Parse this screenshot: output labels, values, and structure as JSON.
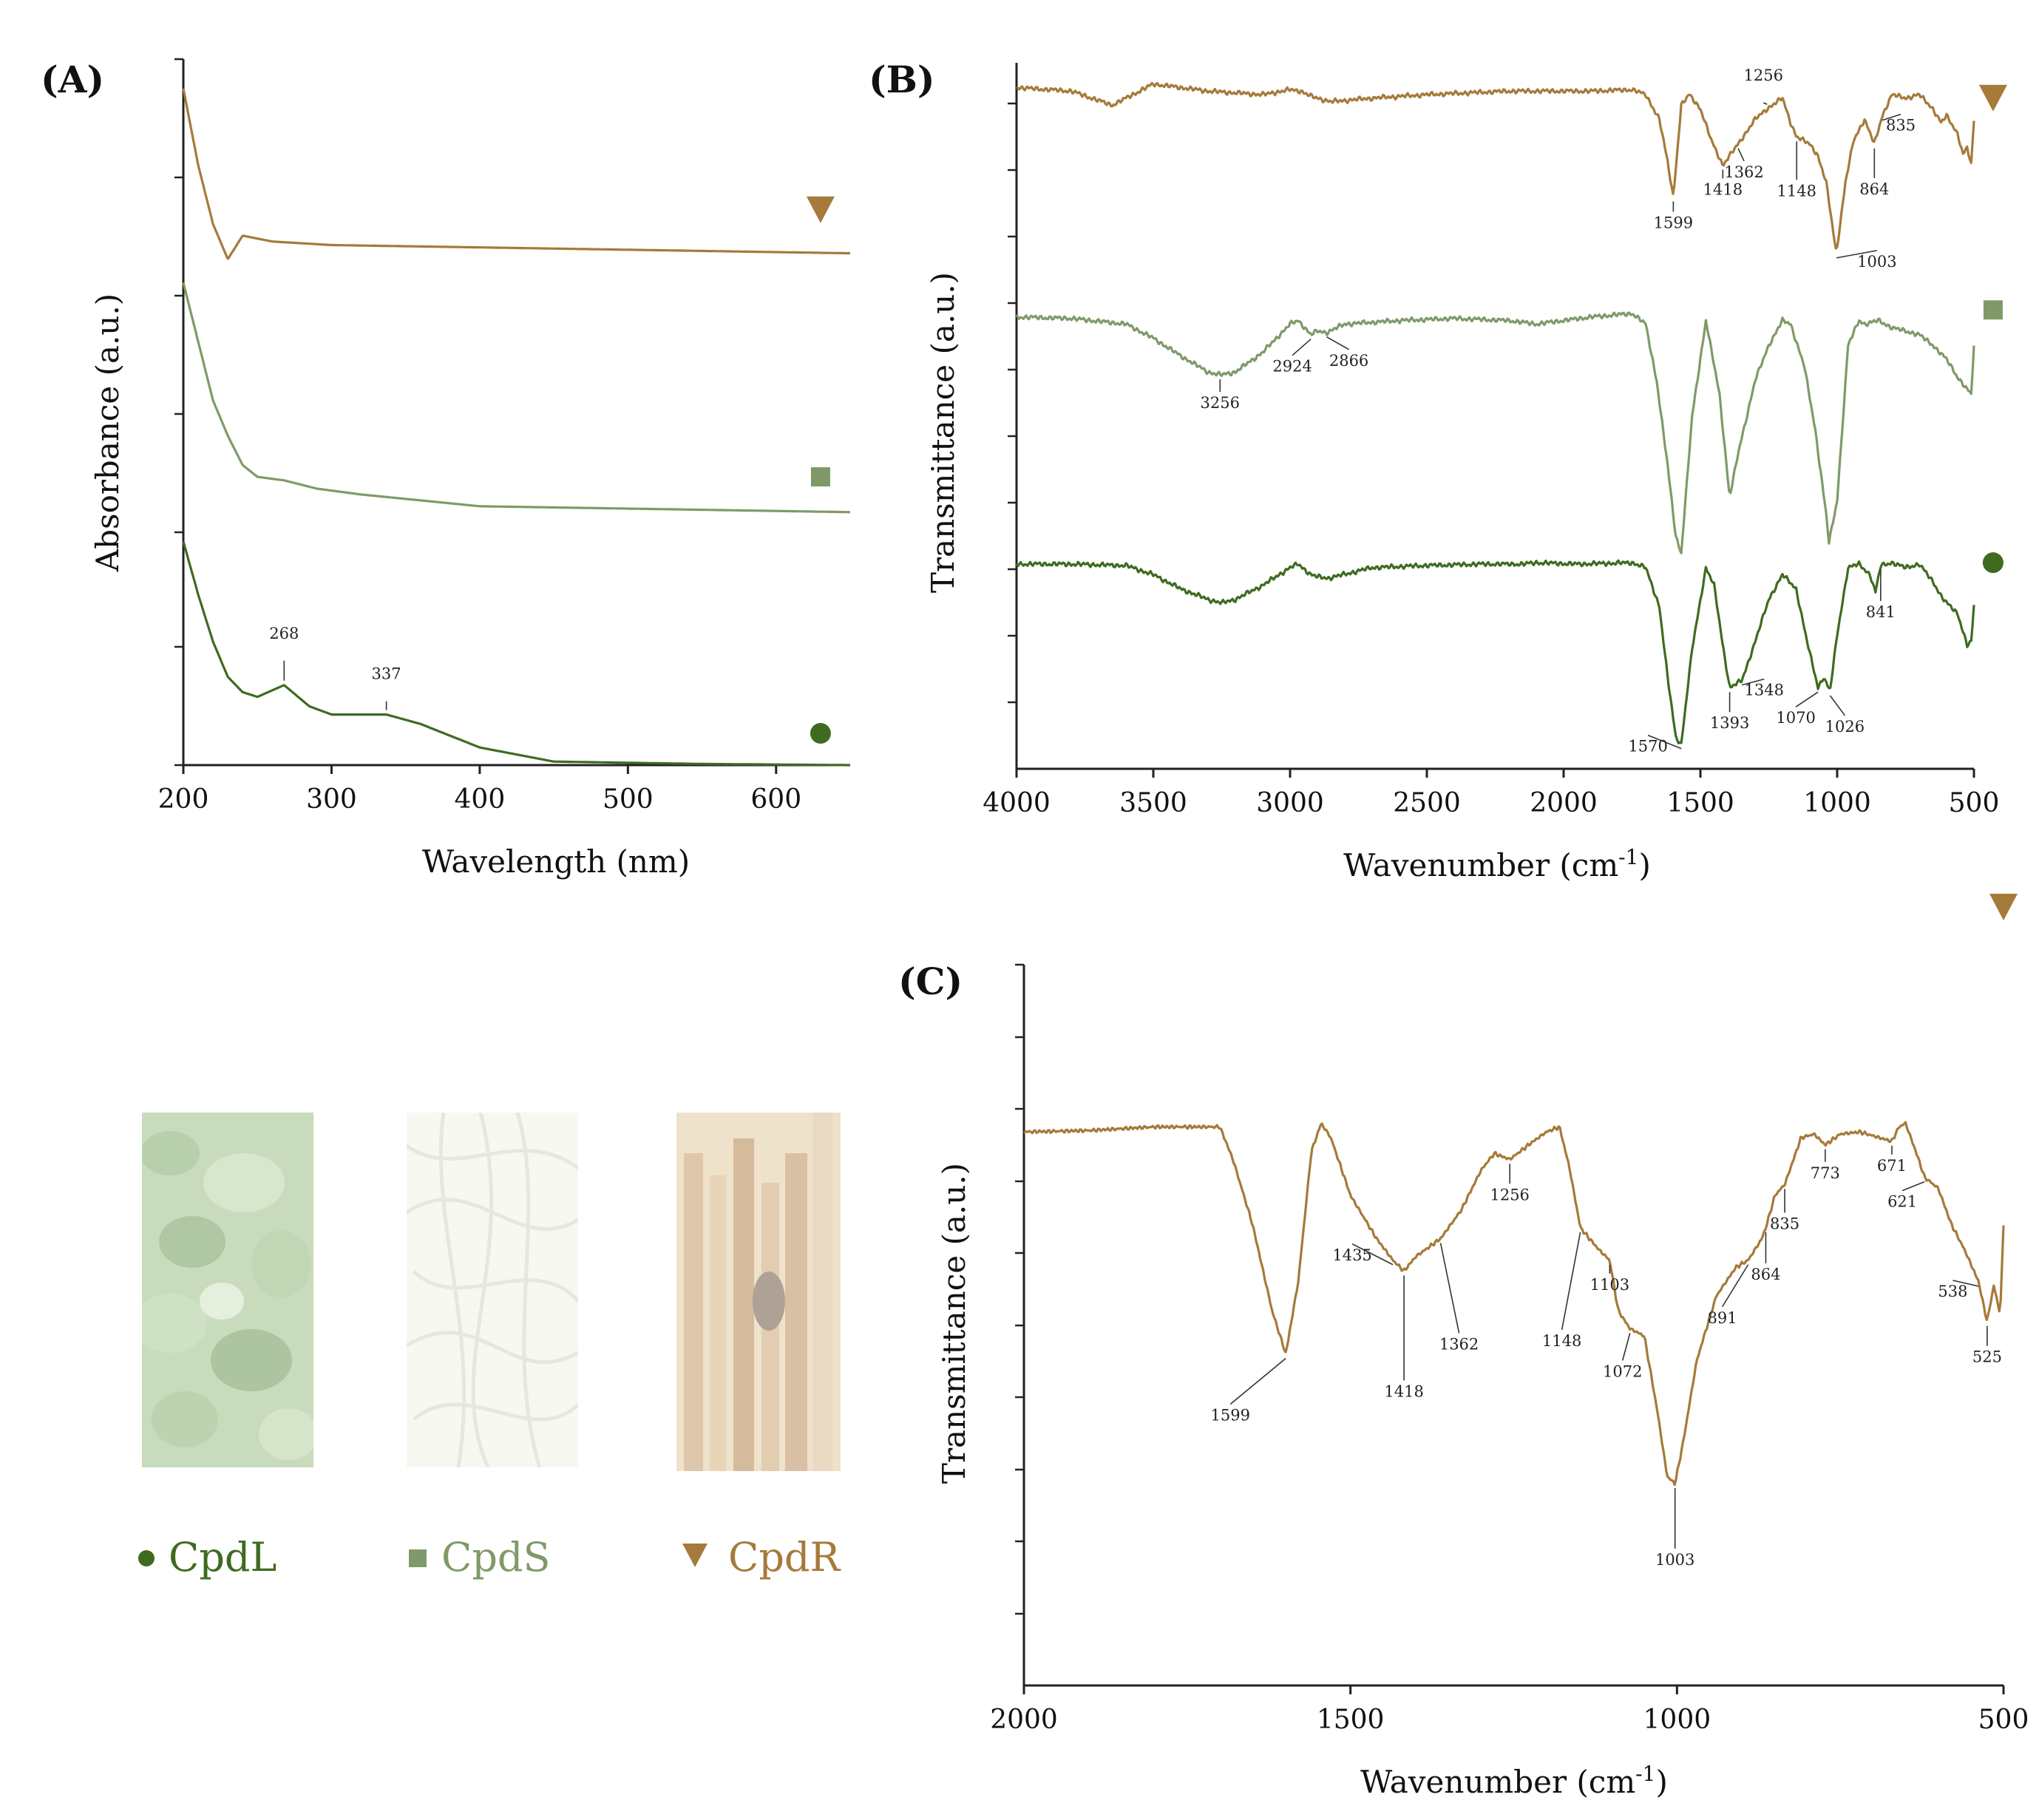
{
  "colors": {
    "CpdL": "#3f6b1f",
    "CpdS": "#7f9a68",
    "CpdR": "#a57a3a"
  },
  "legend": [
    {
      "name": "CpdL",
      "marker": "circle",
      "label": "CpdL"
    },
    {
      "name": "CpdS",
      "marker": "square",
      "label": "CpdS"
    },
    {
      "name": "CpdR",
      "marker": "triangle-down",
      "label": "CpdR"
    }
  ],
  "photos": [
    {
      "name": "leaves-photo",
      "icon": "leaves-photo-icon"
    },
    {
      "name": "stems-photo",
      "icon": "stems-photo-icon"
    },
    {
      "name": "roots-photo",
      "icon": "roots-photo-icon"
    }
  ],
  "chart_data": [
    {
      "panel": "(A)",
      "type": "line",
      "xlabel": "Wavelength (nm)",
      "ylabel": "Absorbance (a.u.)",
      "xlim": [
        200,
        650
      ],
      "ylim": [
        0,
        6
      ],
      "xticks": [
        200,
        300,
        400,
        500,
        600
      ],
      "series": [
        {
          "name": "CpdR",
          "marker": "triangle-down",
          "x": [
            200,
            210,
            220,
            230,
            240,
            260,
            300,
            400,
            500,
            650
          ],
          "values": [
            5.75,
            5.1,
            4.6,
            4.3,
            4.5,
            4.45,
            4.42,
            4.4,
            4.38,
            4.35
          ]
        },
        {
          "name": "CpdS",
          "marker": "square",
          "x": [
            200,
            210,
            220,
            230,
            240,
            250,
            268,
            290,
            320,
            400,
            500,
            650
          ],
          "values": [
            4.1,
            3.6,
            3.1,
            2.8,
            2.55,
            2.45,
            2.42,
            2.35,
            2.3,
            2.2,
            2.18,
            2.15
          ]
        },
        {
          "name": "CpdL",
          "marker": "circle",
          "x": [
            200,
            210,
            220,
            230,
            240,
            250,
            268,
            285,
            300,
            337,
            360,
            400,
            450,
            550,
            650
          ],
          "values": [
            1.9,
            1.45,
            1.05,
            0.75,
            0.62,
            0.58,
            0.68,
            0.5,
            0.43,
            0.43,
            0.35,
            0.15,
            0.03,
            0.01,
            0.0
          ]
        }
      ],
      "annotations": [
        {
          "label": "268",
          "x": 268,
          "series": "CpdL"
        },
        {
          "label": "337",
          "x": 337,
          "series": "CpdL"
        }
      ]
    },
    {
      "panel": "(B)",
      "type": "line",
      "xlabel": "Wavenumber (cm-1)",
      "xlabel_main": "Wavenumber (cm",
      "xlabel_sup": "-1",
      "xlabel_end": ")",
      "ylabel": "Transmittance (a.u.)",
      "xlim": [
        4000,
        500
      ],
      "ylim": [
        0,
        10
      ],
      "xticks": [
        4000,
        3500,
        3000,
        2500,
        2000,
        1500,
        1000,
        500
      ],
      "series": [
        {
          "name": "CpdR",
          "marker": "triangle-down",
          "x": [
            4000,
            3800,
            3650,
            3500,
            3300,
            3100,
            3000,
            2960,
            2920,
            2850,
            2700,
            2500,
            2200,
            1900,
            1750,
            1700,
            1650,
            1620,
            1599,
            1570,
            1540,
            1500,
            1460,
            1418,
            1362,
            1300,
            1256,
            1200,
            1170,
            1148,
            1100,
            1072,
            1040,
            1003,
            970,
            940,
            900,
            864,
            835,
            800,
            750,
            700,
            650,
            620,
            600,
            560,
            540,
            525,
            510,
            500
          ],
          "values": [
            9.65,
            9.6,
            9.4,
            9.7,
            9.6,
            9.55,
            9.62,
            9.6,
            9.52,
            9.45,
            9.5,
            9.55,
            9.6,
            9.6,
            9.62,
            9.55,
            9.2,
            8.6,
            8.1,
            9.4,
            9.55,
            9.35,
            8.9,
            8.55,
            8.85,
            9.2,
            9.35,
            9.5,
            9.15,
            8.95,
            8.85,
            8.7,
            8.3,
            7.3,
            8.3,
            8.9,
            9.2,
            8.85,
            9.25,
            9.55,
            9.5,
            9.55,
            9.35,
            9.15,
            9.25,
            9.0,
            8.7,
            8.8,
            8.55,
            9.2
          ]
        },
        {
          "name": "CpdS",
          "marker": "square",
          "x": [
            4000,
            3800,
            3600,
            3500,
            3400,
            3300,
            3256,
            3200,
            3100,
            3000,
            2970,
            2924,
            2900,
            2866,
            2800,
            2600,
            2400,
            2200,
            2100,
            1900,
            1750,
            1700,
            1660,
            1620,
            1590,
            1570,
            1530,
            1480,
            1430,
            1393,
            1360,
            1300,
            1250,
            1200,
            1170,
            1120,
            1080,
            1040,
            1030,
            1000,
            960,
            920,
            900,
            850,
            800,
            700,
            650,
            600,
            560,
            530,
            510,
            500
          ],
          "values": [
            6.4,
            6.38,
            6.3,
            6.1,
            5.85,
            5.62,
            5.58,
            5.62,
            5.9,
            6.3,
            6.35,
            6.15,
            6.2,
            6.18,
            6.3,
            6.35,
            6.38,
            6.35,
            6.3,
            6.4,
            6.45,
            6.3,
            5.5,
            4.3,
            3.3,
            3.05,
            5.0,
            6.35,
            5.3,
            3.85,
            4.5,
            5.5,
            6.0,
            6.35,
            6.3,
            5.7,
            4.8,
            3.6,
            3.2,
            3.8,
            6.0,
            6.35,
            6.3,
            6.35,
            6.25,
            6.15,
            6.0,
            5.8,
            5.55,
            5.4,
            5.3,
            6.0
          ]
        },
        {
          "name": "CpdL",
          "marker": "circle",
          "x": [
            4000,
            3800,
            3600,
            3500,
            3400,
            3300,
            3250,
            3200,
            3100,
            3000,
            2970,
            2924,
            2900,
            2860,
            2700,
            2500,
            2300,
            2150,
            2100,
            1950,
            1750,
            1700,
            1650,
            1620,
            1590,
            1570,
            1530,
            1480,
            1450,
            1420,
            1393,
            1348,
            1300,
            1250,
            1200,
            1150,
            1110,
            1070,
            1050,
            1026,
            1000,
            960,
            920,
            880,
            860,
            841,
            800,
            750,
            700,
            650,
            620,
            600,
            560,
            540,
            525,
            510,
            500
          ],
          "values": [
            2.9,
            2.9,
            2.88,
            2.75,
            2.55,
            2.4,
            2.35,
            2.4,
            2.6,
            2.85,
            2.9,
            2.75,
            2.72,
            2.7,
            2.85,
            2.88,
            2.9,
            2.9,
            2.92,
            2.9,
            2.92,
            2.85,
            2.3,
            1.3,
            0.45,
            0.35,
            1.7,
            2.85,
            2.6,
            1.8,
            1.15,
            1.25,
            1.8,
            2.4,
            2.75,
            2.55,
            1.8,
            1.15,
            1.3,
            1.1,
            1.9,
            2.85,
            2.9,
            2.75,
            2.5,
            2.88,
            2.92,
            2.85,
            2.9,
            2.65,
            2.45,
            2.35,
            2.2,
            1.95,
            1.75,
            1.8,
            2.3
          ]
        }
      ],
      "annotations": [
        {
          "label": "1599",
          "x": 1599,
          "series": "CpdR"
        },
        {
          "label": "1418",
          "x": 1418,
          "series": "CpdR"
        },
        {
          "label": "1362",
          "x": 1362,
          "series": "CpdR"
        },
        {
          "label": "1256",
          "x": 1256,
          "series": "CpdR"
        },
        {
          "label": "1148",
          "x": 1148,
          "series": "CpdR"
        },
        {
          "label": "1003",
          "x": 1003,
          "series": "CpdR"
        },
        {
          "label": "864",
          "x": 864,
          "series": "CpdR"
        },
        {
          "label": "835",
          "x": 835,
          "series": "CpdR"
        },
        {
          "label": "3256",
          "x": 3256,
          "series": "CpdS"
        },
        {
          "label": "2924",
          "x": 2924,
          "series": "CpdS"
        },
        {
          "label": "2866",
          "x": 2866,
          "series": "CpdS"
        },
        {
          "label": "1570",
          "x": 1570,
          "series": "CpdL"
        },
        {
          "label": "1393",
          "x": 1393,
          "series": "CpdL"
        },
        {
          "label": "1348",
          "x": 1348,
          "series": "CpdL"
        },
        {
          "label": "1070",
          "x": 1070,
          "series": "CpdL"
        },
        {
          "label": "1026",
          "x": 1026,
          "series": "CpdL"
        },
        {
          "label": "841",
          "x": 841,
          "series": "CpdL"
        }
      ]
    },
    {
      "panel": "(C)",
      "type": "line",
      "xlabel": "Wavenumber (cm-1)",
      "xlabel_main": "Wavenumber (cm",
      "xlabel_sup": "-1",
      "xlabel_end": ")",
      "ylabel": "Transmittance (a.u.)",
      "xlim": [
        2000,
        500
      ],
      "ylim": [
        0,
        10
      ],
      "xticks": [
        2000,
        1500,
        1000,
        500
      ],
      "series": [
        {
          "name": "CpdR",
          "marker": "triangle-down",
          "x": [
            2000,
            1900,
            1800,
            1700,
            1680,
            1650,
            1620,
            1599,
            1580,
            1560,
            1545,
            1530,
            1500,
            1460,
            1435,
            1418,
            1400,
            1362,
            1330,
            1300,
            1280,
            1256,
            1220,
            1200,
            1180,
            1165,
            1148,
            1120,
            1103,
            1090,
            1072,
            1050,
            1030,
            1015,
            1003,
            990,
            970,
            940,
            910,
            891,
            870,
            864,
            850,
            835,
            810,
            790,
            773,
            750,
            720,
            690,
            671,
            660,
            650,
            630,
            621,
            600,
            580,
            560,
            538,
            530,
            525,
            515,
            505,
            500
          ],
          "values": [
            7.68,
            7.7,
            7.75,
            7.75,
            7.3,
            6.4,
            5.2,
            4.6,
            5.6,
            7.4,
            7.8,
            7.6,
            6.8,
            6.2,
            5.9,
            5.75,
            5.95,
            6.2,
            6.6,
            7.15,
            7.38,
            7.3,
            7.55,
            7.68,
            7.75,
            7.2,
            6.35,
            6.05,
            5.9,
            5.2,
            4.95,
            4.85,
            3.8,
            2.9,
            2.8,
            3.4,
            4.5,
            5.4,
            5.8,
            5.9,
            6.2,
            6.35,
            6.8,
            6.95,
            7.6,
            7.65,
            7.5,
            7.65,
            7.68,
            7.6,
            7.55,
            7.75,
            7.8,
            7.3,
            7.05,
            6.9,
            6.4,
            6.05,
            5.6,
            5.25,
            5.05,
            5.55,
            5.15,
            6.4
          ]
        }
      ],
      "annotations": [
        {
          "label": "1599",
          "x": 1599
        },
        {
          "label": "1435",
          "x": 1435
        },
        {
          "label": "1418",
          "x": 1418
        },
        {
          "label": "1362",
          "x": 1362
        },
        {
          "label": "1256",
          "x": 1256
        },
        {
          "label": "1148",
          "x": 1148
        },
        {
          "label": "1103",
          "x": 1103
        },
        {
          "label": "1072",
          "x": 1072
        },
        {
          "label": "1003",
          "x": 1003
        },
        {
          "label": "891",
          "x": 891
        },
        {
          "label": "864",
          "x": 864
        },
        {
          "label": "835",
          "x": 835
        },
        {
          "label": "773",
          "x": 773
        },
        {
          "label": "671",
          "x": 671
        },
        {
          "label": "621",
          "x": 621
        },
        {
          "label": "538",
          "x": 538
        },
        {
          "label": "525",
          "x": 525
        }
      ]
    }
  ]
}
